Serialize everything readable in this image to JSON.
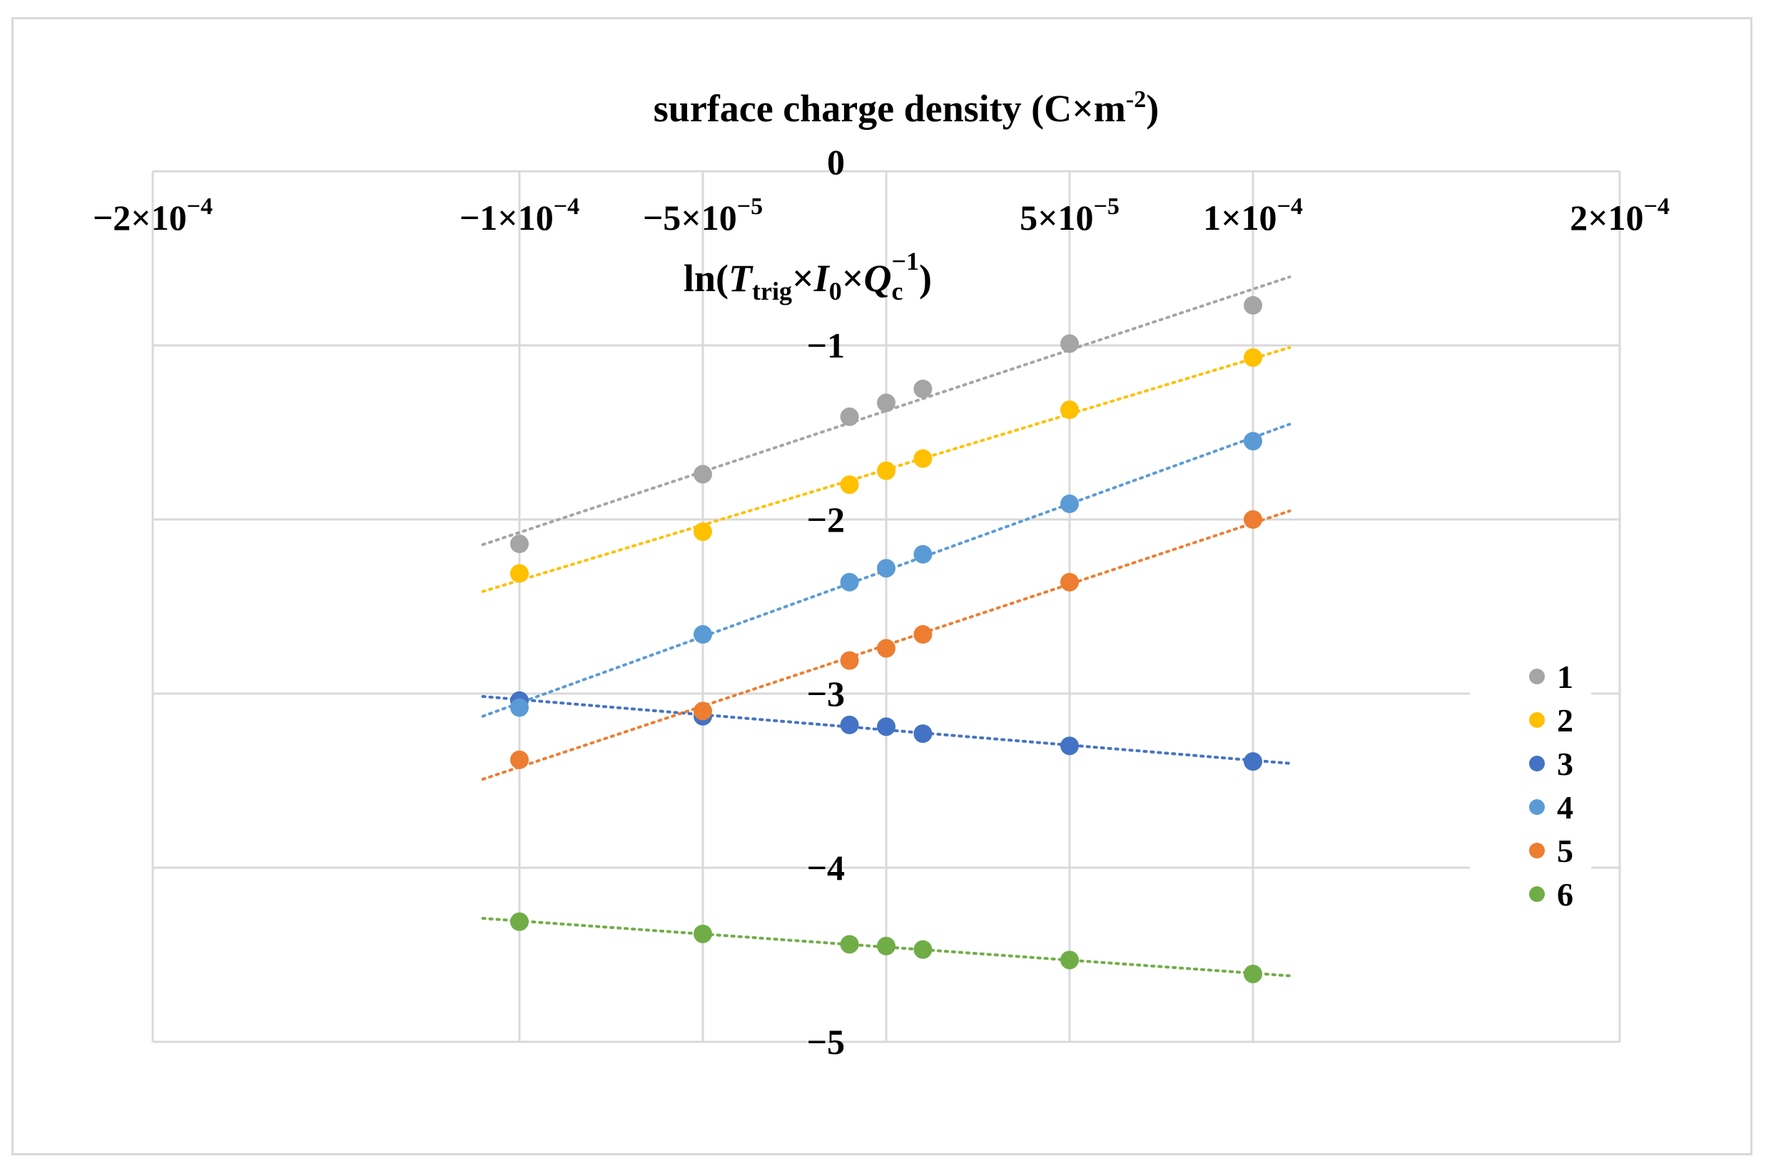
{
  "chart_data": {
    "type": "scatter",
    "title": "surface charge density (C×m",
    "title_sup": "-2",
    "title_close": ")",
    "xlabel": "surface charge density (C×m⁻²)",
    "ylabel_parts": {
      "prefix": "ln(",
      "T": "T",
      "T_sub": "trig",
      "mult1": "×",
      "I": "I",
      "I_sub": "0",
      "mult2": "×",
      "Q": "Q",
      "Q_sub": "c",
      "Q_sup": "−1",
      "suffix": ")"
    },
    "xlim": [
      -0.0002,
      0.0002
    ],
    "ylim": [
      -5,
      0
    ],
    "x_ticks": [
      -0.0002,
      -0.0001,
      -5e-05,
      5e-05,
      0.0001,
      0.0002
    ],
    "x_tick_labels": [
      {
        "mant": "−2×10",
        "exp": "−4"
      },
      {
        "mant": "−1×10",
        "exp": "−4"
      },
      {
        "mant": "−5×10",
        "exp": "−5"
      },
      {
        "mant": "5×10",
        "exp": "−5"
      },
      {
        "mant": "1×10",
        "exp": "−4"
      },
      {
        "mant": "2×10",
        "exp": "−4"
      }
    ],
    "y_ticks": [
      0,
      -1,
      -2,
      -3,
      -4,
      -5
    ],
    "y_tick_labels": [
      "0",
      "−1",
      "−2",
      "−3",
      "−4",
      "−5"
    ],
    "grid": true,
    "trendlines": "dotted linear",
    "legend_position": "right",
    "x": [
      -0.0001,
      -5e-05,
      -1e-05,
      0,
      1e-05,
      5e-05,
      0.0001
    ],
    "series": [
      {
        "name": "1",
        "color": "#a5a5a5",
        "values": [
          -2.14,
          -1.74,
          -1.41,
          -1.33,
          -1.25,
          -0.99,
          -0.77
        ]
      },
      {
        "name": "2",
        "color": "#ffc000",
        "values": [
          -2.31,
          -2.07,
          -1.8,
          -1.72,
          -1.65,
          -1.37,
          -1.07
        ]
      },
      {
        "name": "3",
        "color": "#4472c4",
        "values": [
          -3.04,
          -3.13,
          -3.18,
          -3.19,
          -3.23,
          -3.3,
          -3.39
        ]
      },
      {
        "name": "4",
        "color": "#5b9bd5",
        "values": [
          -3.08,
          -2.66,
          -2.36,
          -2.28,
          -2.2,
          -1.91,
          -1.55
        ]
      },
      {
        "name": "5",
        "color": "#ed7d31",
        "values": [
          -3.38,
          -3.1,
          -2.81,
          -2.74,
          -2.66,
          -2.36,
          -2.0
        ]
      },
      {
        "name": "6",
        "color": "#70ad47",
        "values": [
          -4.31,
          -4.38,
          -4.44,
          -4.45,
          -4.47,
          -4.53,
          -4.61
        ]
      }
    ]
  }
}
